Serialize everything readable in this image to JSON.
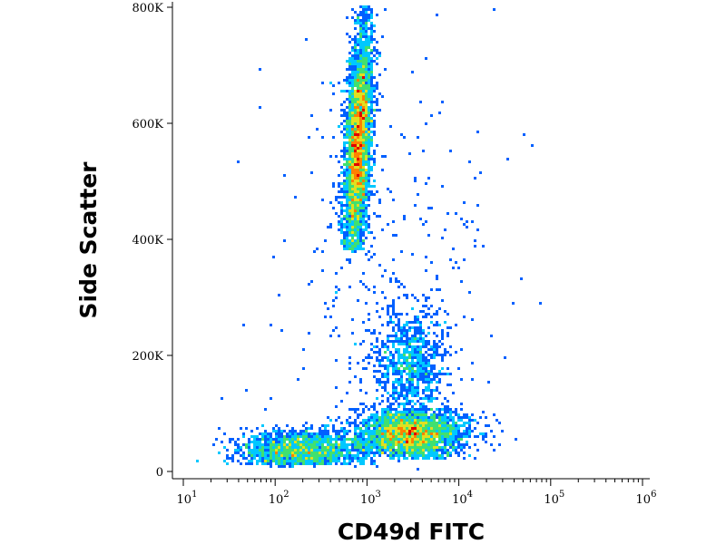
{
  "chart_data": {
    "type": "scatter",
    "subtype": "flow-cytometry-density-dot-plot",
    "title": "",
    "xlabel": "CD49d FITC",
    "ylabel": "Side Scatter",
    "x_scale": "log",
    "xlim": [
      10,
      1000000
    ],
    "ylim": [
      0,
      800000
    ],
    "x_ticks": [
      {
        "base": "10",
        "exp": "1",
        "value": 10
      },
      {
        "base": "10",
        "exp": "2",
        "value": 100
      },
      {
        "base": "10",
        "exp": "3",
        "value": 1000
      },
      {
        "base": "10",
        "exp": "4",
        "value": 10000
      },
      {
        "base": "10",
        "exp": "5",
        "value": 100000
      },
      {
        "base": "10",
        "exp": "6",
        "value": 1000000
      }
    ],
    "y_ticks": [
      {
        "label": "0",
        "value": 0
      },
      {
        "label": "200K",
        "value": 200000
      },
      {
        "label": "400K",
        "value": 400000
      },
      {
        "label": "600K",
        "value": 600000
      },
      {
        "label": "800K",
        "value": 800000
      }
    ],
    "grid": false,
    "legend": "none",
    "density_colors": [
      "#1010c8",
      "#0060ff",
      "#00c8ff",
      "#40e070",
      "#e0e020",
      "#ff8000",
      "#e00000"
    ],
    "populations": [
      {
        "x_center": 800,
        "x_spread_decades": 0.07,
        "y_range": [
          380000,
          800000
        ],
        "y_peak": 560000,
        "relative_count": 0.4,
        "x_drift_decades_per_100k": 0.03
      },
      {
        "x_center": 3000,
        "x_spread_decades": 0.3,
        "y_range": [
          20000,
          110000
        ],
        "y_peak": 65000,
        "relative_count": 0.3
      },
      {
        "x_center": 200,
        "x_spread_decades": 0.35,
        "y_range": [
          10000,
          80000
        ],
        "y_peak": 35000,
        "relative_count": 0.17
      },
      {
        "x_center": 3000,
        "x_spread_decades": 0.2,
        "y_range": [
          110000,
          300000
        ],
        "y_peak": 180000,
        "relative_count": 0.09
      },
      {
        "x_center": 1500,
        "x_spread_decades": 0.6,
        "y_range": [
          0,
          800000
        ],
        "y_peak": 300000,
        "relative_count": 0.04
      }
    ]
  }
}
